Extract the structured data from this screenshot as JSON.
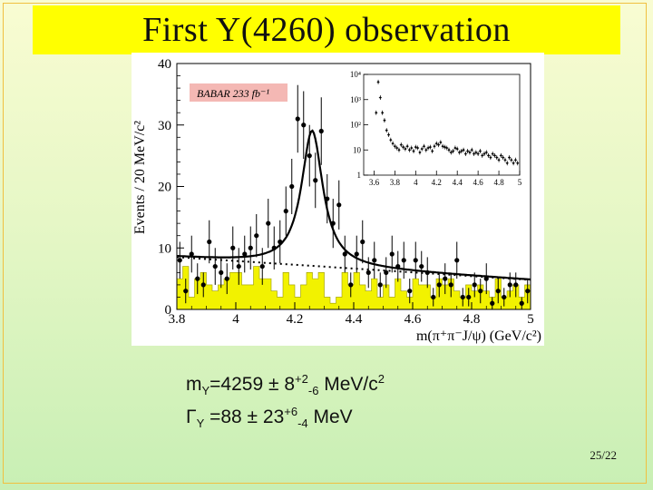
{
  "slide": {
    "title": "First Y(4260) observation",
    "page_number": "25/22"
  },
  "annotations": {
    "mass": {
      "label": "m",
      "sub": "Y",
      "value": "=4259 ± 8",
      "sup1": "+2",
      "sub2": "-6",
      "unit": " MeV/c",
      "sup3": "2"
    },
    "width": {
      "label": "Γ",
      "sub": "Y",
      "value": " =88 ± 23",
      "sup1": "+6",
      "sub2": "-4",
      "unit": "  MeV"
    }
  },
  "colors": {
    "title_bg": "#ffff00",
    "histogram_fill": "#f2f200",
    "curve": "#000000",
    "label_box": "#f4b8b4"
  },
  "chart_data": [
    {
      "type": "scatter",
      "label": "BABAR 233 fb⁻¹",
      "xlabel": "m(π⁺π⁻J/ψ) (GeV/c²)",
      "ylabel": "Events / 20 MeV/c²",
      "xlim": [
        3.8,
        5.0
      ],
      "ylim": [
        0,
        40
      ],
      "x_ticks": [
        "3.8",
        "4",
        "4.2",
        "4.4",
        "4.6",
        "4.8",
        "5"
      ],
      "y_ticks": [
        "0",
        "10",
        "20",
        "30",
        "40"
      ],
      "data_points": {
        "x": [
          3.81,
          3.83,
          3.85,
          3.87,
          3.89,
          3.91,
          3.93,
          3.95,
          3.97,
          3.99,
          4.01,
          4.03,
          4.05,
          4.07,
          4.09,
          4.11,
          4.13,
          4.15,
          4.17,
          4.19,
          4.21,
          4.23,
          4.25,
          4.27,
          4.29,
          4.31,
          4.33,
          4.35,
          4.37,
          4.39,
          4.41,
          4.43,
          4.45,
          4.47,
          4.49,
          4.51,
          4.53,
          4.55,
          4.57,
          4.59,
          4.61,
          4.63,
          4.65,
          4.67,
          4.69,
          4.71,
          4.73,
          4.75,
          4.77,
          4.79,
          4.81,
          4.83,
          4.85,
          4.87,
          4.89,
          4.91,
          4.93,
          4.95,
          4.97,
          4.99
        ],
        "y": [
          8,
          3,
          9,
          5,
          4,
          11,
          7,
          6,
          5,
          10,
          7,
          9,
          10,
          12,
          7,
          14,
          10,
          11,
          16,
          20,
          31,
          30,
          25,
          21,
          29,
          18,
          14,
          17,
          9,
          4,
          9,
          11,
          6,
          8,
          4,
          6,
          9,
          7,
          8,
          3,
          8,
          7,
          6,
          2,
          4,
          5,
          4,
          8,
          2,
          2,
          4,
          3,
          5,
          1,
          3,
          2,
          4,
          4,
          1,
          3
        ],
        "err": [
          3,
          2,
          3,
          2.5,
          2,
          3.5,
          3,
          2.5,
          2.5,
          3.5,
          3,
          3,
          3.5,
          3.5,
          3,
          4,
          3.5,
          3.5,
          4,
          4.5,
          5.5,
          5.5,
          5,
          4.5,
          5.5,
          4,
          4,
          4,
          3,
          2,
          3,
          3.5,
          2.5,
          3,
          2,
          2.5,
          3,
          2.5,
          3,
          2,
          3,
          2.5,
          2.5,
          1.5,
          2,
          2.5,
          2,
          3,
          1.5,
          1.5,
          2,
          2,
          2.5,
          1,
          2,
          1.5,
          2,
          2,
          1,
          2
        ]
      },
      "sideband_histogram": {
        "x": [
          3.81,
          3.83,
          3.85,
          3.87,
          3.89,
          3.91,
          3.93,
          3.95,
          3.97,
          3.99,
          4.01,
          4.03,
          4.05,
          4.07,
          4.09,
          4.11,
          4.13,
          4.15,
          4.17,
          4.19,
          4.21,
          4.23,
          4.25,
          4.27,
          4.29,
          4.31,
          4.33,
          4.35,
          4.37,
          4.39,
          4.41,
          4.43,
          4.45,
          4.47,
          4.49,
          4.51,
          4.53,
          4.55,
          4.57,
          4.59,
          4.61,
          4.63,
          4.65,
          4.67,
          4.69,
          4.71,
          4.73,
          4.75,
          4.77,
          4.79,
          4.81,
          4.83,
          4.85,
          4.87,
          4.89,
          4.91,
          4.93,
          4.95,
          4.97,
          4.99
        ],
        "y": [
          5,
          7,
          2,
          5,
          6,
          4,
          3,
          4,
          5,
          6,
          6,
          4,
          4,
          7,
          5,
          5,
          3,
          2,
          6,
          4,
          2,
          4,
          6,
          5,
          6,
          2,
          1,
          2,
          6,
          4,
          6,
          4,
          3,
          5,
          2,
          4,
          2,
          5,
          3,
          2,
          5,
          4,
          4,
          2,
          5,
          4,
          5,
          3,
          2,
          4,
          3,
          4,
          3,
          2,
          5,
          2,
          3,
          4,
          2,
          4
        ]
      },
      "fit": {
        "peak_mass": 4.259,
        "peak_width": 0.088,
        "peak_height": 22,
        "background_start": 8.5,
        "background_end": 4.8
      }
    },
    {
      "type": "scatter",
      "scale": "log",
      "xlim": [
        3.5,
        5.0
      ],
      "ylim": [
        1,
        10000
      ],
      "x_ticks": [
        "3.6",
        "3.8",
        "4",
        "4.2",
        "4.4",
        "4.6",
        "4.8",
        "5"
      ],
      "y_ticks": [
        "1",
        "10",
        "10²",
        "10³",
        "10⁴"
      ],
      "data_points": {
        "x": [
          3.62,
          3.64,
          3.66,
          3.68,
          3.7,
          3.72,
          3.74,
          3.76,
          3.78,
          3.8,
          3.82,
          3.84,
          3.86,
          3.88,
          3.9,
          3.92,
          3.94,
          3.96,
          3.98,
          4.0,
          4.02,
          4.04,
          4.06,
          4.08,
          4.1,
          4.12,
          4.14,
          4.16,
          4.18,
          4.2,
          4.22,
          4.24,
          4.26,
          4.28,
          4.3,
          4.32,
          4.34,
          4.36,
          4.38,
          4.4,
          4.42,
          4.44,
          4.46,
          4.48,
          4.5,
          4.52,
          4.54,
          4.56,
          4.58,
          4.6,
          4.62,
          4.64,
          4.66,
          4.68,
          4.7,
          4.72,
          4.74,
          4.76,
          4.78,
          4.8,
          4.82,
          4.84,
          4.86,
          4.88,
          4.9,
          4.92,
          4.94,
          4.96,
          4.98
        ],
        "y": [
          300,
          5000,
          1200,
          300,
          150,
          60,
          40,
          25,
          18,
          14,
          12,
          10,
          16,
          13,
          11,
          14,
          10,
          12,
          9,
          13,
          12,
          8,
          11,
          14,
          10,
          12,
          13,
          9,
          14,
          18,
          16,
          20,
          14,
          13,
          12,
          10,
          8,
          9,
          12,
          11,
          8,
          9,
          10,
          7,
          9,
          8,
          10,
          7,
          8,
          7,
          9,
          6,
          7,
          8,
          6,
          5,
          7,
          6,
          5,
          4,
          6,
          5,
          4,
          3,
          5,
          4,
          3,
          4,
          3
        ]
      }
    }
  ]
}
